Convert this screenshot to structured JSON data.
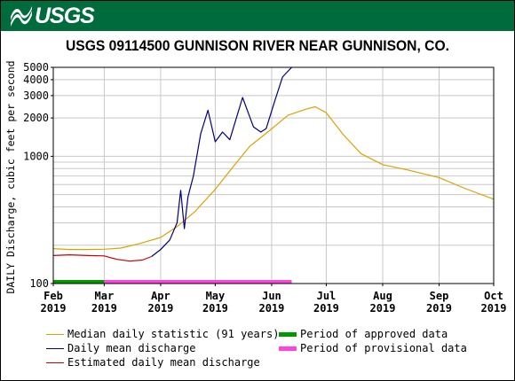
{
  "header": {
    "logo_text": "USGS",
    "banner_color": "#006b3c"
  },
  "chart_data": {
    "type": "line",
    "title": "USGS 09114500 GUNNISON RIVER NEAR GUNNISON, CO.",
    "ylabel": "DAILY Discharge, cubic feet per second",
    "xlabel": "",
    "y_scale": "log",
    "ylim": [
      100,
      5000
    ],
    "y_ticks": [
      {
        "value": 100,
        "label": "100"
      },
      {
        "value": 1000,
        "label": "1000"
      },
      {
        "value": 2000,
        "label": "2000"
      },
      {
        "value": 3000,
        "label": "3000"
      },
      {
        "value": 4000,
        "label": "4000"
      },
      {
        "value": 5000,
        "label": "5000"
      }
    ],
    "y_minor_gridlines": [
      200,
      300,
      400,
      500,
      600,
      700,
      800,
      900
    ],
    "xlim": [
      "2019-02-01",
      "2019-10-01"
    ],
    "x_ticks": [
      {
        "date": "2019-02-01",
        "month": "Feb",
        "year": "2019"
      },
      {
        "date": "2019-03-01",
        "month": "Mar",
        "year": "2019"
      },
      {
        "date": "2019-04-01",
        "month": "Apr",
        "year": "2019"
      },
      {
        "date": "2019-05-01",
        "month": "May",
        "year": "2019"
      },
      {
        "date": "2019-06-01",
        "month": "Jun",
        "year": "2019"
      },
      {
        "date": "2019-07-01",
        "month": "Jul",
        "year": "2019"
      },
      {
        "date": "2019-08-01",
        "month": "Aug",
        "year": "2019"
      },
      {
        "date": "2019-09-01",
        "month": "Sep",
        "year": "2019"
      },
      {
        "date": "2019-10-01",
        "month": "Oct",
        "year": "2019"
      }
    ],
    "grid": true,
    "series": [
      {
        "name": "Median daily statistic (91 years)",
        "color": "#e0a000",
        "points": [
          [
            "2019-02-01",
            188
          ],
          [
            "2019-02-10",
            185
          ],
          [
            "2019-02-20",
            185
          ],
          [
            "2019-03-01",
            186
          ],
          [
            "2019-03-10",
            190
          ],
          [
            "2019-03-20",
            205
          ],
          [
            "2019-04-01",
            230
          ],
          [
            "2019-04-10",
            280
          ],
          [
            "2019-04-20",
            370
          ],
          [
            "2019-05-01",
            550
          ],
          [
            "2019-05-10",
            800
          ],
          [
            "2019-05-20",
            1200
          ],
          [
            "2019-05-31",
            1600
          ],
          [
            "2019-06-10",
            2100
          ],
          [
            "2019-06-20",
            2350
          ],
          [
            "2019-06-25",
            2450
          ],
          [
            "2019-07-01",
            2200
          ],
          [
            "2019-07-10",
            1500
          ],
          [
            "2019-07-20",
            1050
          ],
          [
            "2019-08-01",
            860
          ],
          [
            "2019-08-15",
            780
          ],
          [
            "2019-09-01",
            680
          ],
          [
            "2019-09-15",
            560
          ],
          [
            "2019-10-01",
            460
          ]
        ]
      },
      {
        "name": "Daily mean discharge",
        "color": "#000080",
        "points": [
          [
            "2019-03-27",
            163
          ],
          [
            "2019-04-01",
            185
          ],
          [
            "2019-04-06",
            220
          ],
          [
            "2019-04-10",
            300
          ],
          [
            "2019-04-12",
            540
          ],
          [
            "2019-04-14",
            270
          ],
          [
            "2019-04-16",
            480
          ],
          [
            "2019-04-19",
            700
          ],
          [
            "2019-04-23",
            1500
          ],
          [
            "2019-04-27",
            2300
          ],
          [
            "2019-05-01",
            1300
          ],
          [
            "2019-05-05",
            1550
          ],
          [
            "2019-05-09",
            1350
          ],
          [
            "2019-05-16",
            2900
          ],
          [
            "2019-05-22",
            1700
          ],
          [
            "2019-05-26",
            1550
          ],
          [
            "2019-05-29",
            1650
          ],
          [
            "2019-06-03",
            2800
          ],
          [
            "2019-06-07",
            4200
          ],
          [
            "2019-06-12",
            5000
          ]
        ]
      },
      {
        "name": "Estimated daily mean discharge",
        "color": "#cc0000",
        "points": [
          [
            "2019-02-01",
            166
          ],
          [
            "2019-02-10",
            168
          ],
          [
            "2019-02-20",
            166
          ],
          [
            "2019-03-01",
            165
          ],
          [
            "2019-03-08",
            155
          ],
          [
            "2019-03-15",
            150
          ],
          [
            "2019-03-22",
            153
          ],
          [
            "2019-03-27",
            163
          ]
        ]
      }
    ],
    "period_bars": [
      {
        "name": "Period of approved data",
        "color": "#009900",
        "start": "2019-02-01",
        "end": "2019-03-01"
      },
      {
        "name": "Period of provisional data",
        "color": "#ff44dd",
        "start": "2019-03-01",
        "end": "2019-06-12"
      }
    ],
    "legend_placement": "bottom"
  }
}
